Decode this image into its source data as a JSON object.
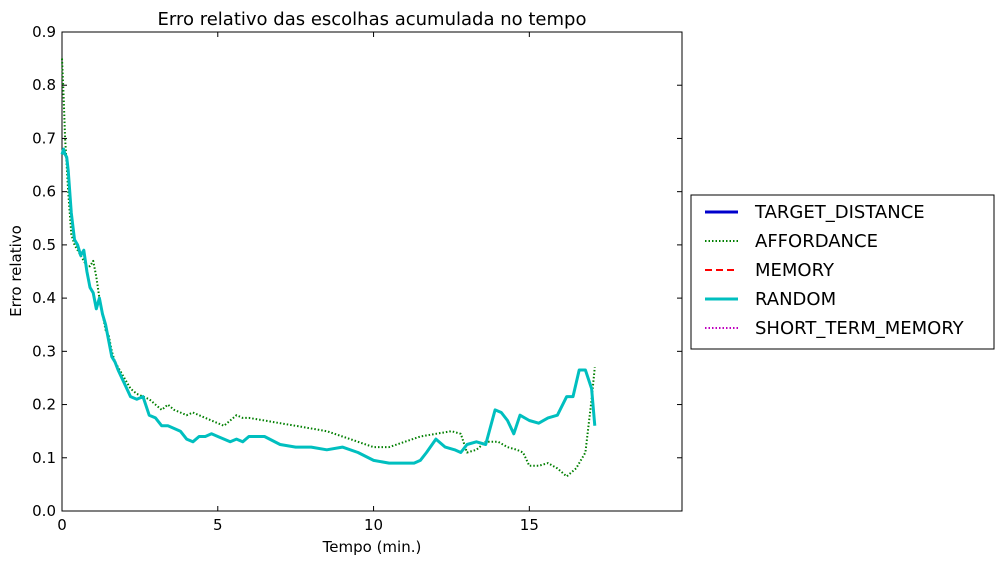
{
  "chart_data": {
    "type": "line",
    "title": "Erro relativo das escolhas acumulada no tempo",
    "xlabel": "Tempo (min.)",
    "ylabel": "Erro relativo",
    "xlim": [
      0,
      19.9
    ],
    "ylim": [
      0,
      0.9
    ],
    "xticks": [
      0,
      5,
      10,
      15
    ],
    "yticks": [
      0.0,
      0.1,
      0.2,
      0.3,
      0.4,
      0.5,
      0.6,
      0.7,
      0.8,
      0.9
    ],
    "grid": false,
    "legend_position": "right-outside",
    "series": [
      {
        "name": "TARGET_DISTANCE",
        "color": "#0000cc",
        "style": "solid",
        "x": [],
        "y": []
      },
      {
        "name": "AFFORDANCE",
        "color": "#007f00",
        "style": "dotted",
        "x": [
          0,
          0.05,
          0.1,
          0.15,
          0.2,
          0.3,
          0.4,
          0.5,
          0.6,
          0.7,
          0.8,
          0.9,
          1.0,
          1.1,
          1.2,
          1.3,
          1.4,
          1.5,
          1.6,
          1.7,
          1.8,
          2.0,
          2.2,
          2.4,
          2.6,
          2.8,
          3.0,
          3.2,
          3.4,
          3.6,
          3.8,
          4.0,
          4.2,
          4.4,
          4.6,
          4.8,
          5.0,
          5.2,
          5.4,
          5.6,
          5.8,
          6.0,
          6.5,
          7.0,
          7.5,
          8.0,
          8.5,
          9.0,
          9.5,
          10.0,
          10.5,
          11.0,
          11.5,
          12.0,
          12.5,
          12.8,
          13.0,
          13.3,
          13.6,
          14.0,
          14.3,
          14.6,
          14.8,
          15.0,
          15.3,
          15.6,
          15.9,
          16.2,
          16.5,
          16.8,
          17.0,
          17.1
        ],
        "y": [
          0.85,
          0.78,
          0.7,
          0.65,
          0.6,
          0.52,
          0.5,
          0.49,
          0.48,
          0.47,
          0.46,
          0.46,
          0.47,
          0.44,
          0.4,
          0.37,
          0.34,
          0.33,
          0.3,
          0.28,
          0.27,
          0.25,
          0.23,
          0.22,
          0.215,
          0.21,
          0.2,
          0.19,
          0.2,
          0.19,
          0.185,
          0.18,
          0.185,
          0.18,
          0.175,
          0.17,
          0.165,
          0.16,
          0.17,
          0.18,
          0.175,
          0.175,
          0.17,
          0.165,
          0.16,
          0.155,
          0.15,
          0.14,
          0.13,
          0.12,
          0.12,
          0.13,
          0.14,
          0.145,
          0.15,
          0.145,
          0.11,
          0.115,
          0.13,
          0.13,
          0.12,
          0.115,
          0.11,
          0.085,
          0.085,
          0.09,
          0.08,
          0.065,
          0.08,
          0.11,
          0.21,
          0.27
        ]
      },
      {
        "name": "MEMORY",
        "color": "#ff0000",
        "style": "dashed",
        "x": [],
        "y": []
      },
      {
        "name": "RANDOM",
        "color": "#00bfbf",
        "style": "solid",
        "x": [
          0,
          0.05,
          0.1,
          0.15,
          0.2,
          0.3,
          0.4,
          0.5,
          0.6,
          0.7,
          0.8,
          0.9,
          1.0,
          1.1,
          1.2,
          1.3,
          1.4,
          1.5,
          1.6,
          1.7,
          1.8,
          2.0,
          2.2,
          2.4,
          2.6,
          2.8,
          3.0,
          3.2,
          3.4,
          3.6,
          3.8,
          4.0,
          4.2,
          4.4,
          4.6,
          4.8,
          5.0,
          5.2,
          5.4,
          5.6,
          5.8,
          6.0,
          6.5,
          7.0,
          7.5,
          8.0,
          8.5,
          9.0,
          9.5,
          10.0,
          10.5,
          11.0,
          11.3,
          11.5,
          11.7,
          12.0,
          12.3,
          12.6,
          12.8,
          13.0,
          13.3,
          13.6,
          13.9,
          14.1,
          14.3,
          14.5,
          14.7,
          15.0,
          15.3,
          15.6,
          15.9,
          16.2,
          16.4,
          16.6,
          16.8,
          17.0,
          17.1
        ],
        "y": [
          0.67,
          0.68,
          0.67,
          0.665,
          0.64,
          0.56,
          0.51,
          0.5,
          0.48,
          0.49,
          0.45,
          0.42,
          0.41,
          0.38,
          0.4,
          0.37,
          0.35,
          0.32,
          0.29,
          0.28,
          0.265,
          0.24,
          0.215,
          0.21,
          0.215,
          0.18,
          0.175,
          0.16,
          0.16,
          0.155,
          0.15,
          0.135,
          0.13,
          0.14,
          0.14,
          0.145,
          0.14,
          0.135,
          0.13,
          0.135,
          0.13,
          0.14,
          0.14,
          0.125,
          0.12,
          0.12,
          0.115,
          0.12,
          0.11,
          0.095,
          0.09,
          0.09,
          0.09,
          0.095,
          0.11,
          0.135,
          0.12,
          0.115,
          0.11,
          0.125,
          0.13,
          0.125,
          0.19,
          0.185,
          0.17,
          0.145,
          0.18,
          0.17,
          0.165,
          0.175,
          0.18,
          0.215,
          0.215,
          0.265,
          0.265,
          0.23,
          0.16
        ]
      },
      {
        "name": "SHORT_TERM_MEMORY",
        "color": "#bf00bf",
        "style": "dotted",
        "x": [],
        "y": []
      }
    ]
  }
}
